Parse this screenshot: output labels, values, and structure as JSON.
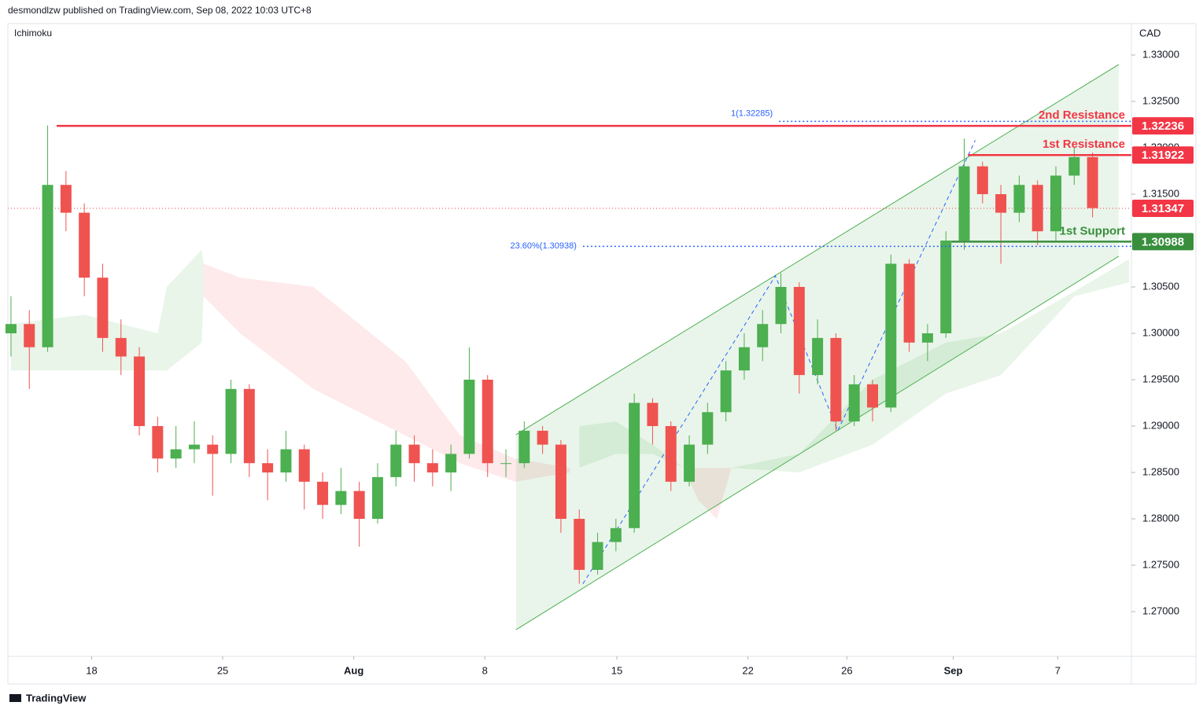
{
  "header": {
    "publisher": "desmondlzw published on TradingView.com, Sep 08, 2022 10:03 UTC+8",
    "indicator": "Ichimoku",
    "footer": "TradingView"
  },
  "chart_data": {
    "type": "candlestick",
    "currency": "CAD",
    "up_color": "#4caf50",
    "down_color": "#ef5350",
    "xlim": [
      -0.17,
      61.12
    ],
    "ylim": [
      1.26517,
      1.33339
    ],
    "xticks": [
      {
        "value": 4.4,
        "label": "18"
      },
      {
        "value": 11.55,
        "label": "25"
      },
      {
        "value": 18.7,
        "label": "Aug"
      },
      {
        "value": 25.85,
        "label": "8"
      },
      {
        "value": 33.05,
        "label": "15"
      },
      {
        "value": 40.2,
        "label": "22"
      },
      {
        "value": 45.6,
        "label": "26"
      },
      {
        "value": 51.4,
        "label": "Sep"
      },
      {
        "value": 57.1,
        "label": "7"
      }
    ],
    "yticks": [
      {
        "value": 1.33,
        "label": "1.33000"
      },
      {
        "value": 1.325,
        "label": "1.32500"
      },
      {
        "value": 1.32,
        "label": "1.32000"
      },
      {
        "value": 1.315,
        "label": "1.31500"
      },
      {
        "value": 1.31,
        "label": "1.31000"
      },
      {
        "value": 1.305,
        "label": "1.30500"
      },
      {
        "value": 1.3,
        "label": "1.30000"
      },
      {
        "value": 1.295,
        "label": "1.29500"
      },
      {
        "value": 1.29,
        "label": "1.29000"
      },
      {
        "value": 1.285,
        "label": "1.28500"
      },
      {
        "value": 1.28,
        "label": "1.28000"
      },
      {
        "value": 1.275,
        "label": "1.27500"
      },
      {
        "value": 1.27,
        "label": "1.27000"
      }
    ],
    "candles": [
      [
        1.3,
        1.304,
        1.2975,
        1.301
      ],
      [
        1.301,
        1.3025,
        1.294,
        1.2985
      ],
      [
        1.2985,
        1.3224,
        1.298,
        1.316
      ],
      [
        1.316,
        1.3175,
        1.311,
        1.313
      ],
      [
        1.313,
        1.314,
        1.304,
        1.306
      ],
      [
        1.306,
        1.3075,
        1.298,
        1.2995
      ],
      [
        1.2995,
        1.3015,
        1.2955,
        1.2975
      ],
      [
        1.2975,
        1.2985,
        1.289,
        1.29
      ],
      [
        1.29,
        1.291,
        1.285,
        1.2865
      ],
      [
        1.2865,
        1.29,
        1.2855,
        1.2875
      ],
      [
        1.2875,
        1.2905,
        1.286,
        1.288
      ],
      [
        1.288,
        1.289,
        1.2825,
        1.287
      ],
      [
        1.287,
        1.295,
        1.286,
        1.294
      ],
      [
        1.294,
        1.2945,
        1.2845,
        1.286
      ],
      [
        1.286,
        1.2875,
        1.282,
        1.285
      ],
      [
        1.285,
        1.2895,
        1.284,
        1.2875
      ],
      [
        1.2875,
        1.288,
        1.281,
        1.284
      ],
      [
        1.284,
        1.285,
        1.28,
        1.2815
      ],
      [
        1.2815,
        1.2855,
        1.2805,
        1.283
      ],
      [
        1.283,
        1.284,
        1.277,
        1.28
      ],
      [
        1.28,
        1.286,
        1.2795,
        1.2845
      ],
      [
        1.2845,
        1.2895,
        1.2835,
        1.288
      ],
      [
        1.288,
        1.289,
        1.284,
        1.286
      ],
      [
        1.286,
        1.2875,
        1.2835,
        1.285
      ],
      [
        1.285,
        1.288,
        1.283,
        1.287
      ],
      [
        1.287,
        1.2985,
        1.2865,
        1.295
      ],
      [
        1.295,
        1.2955,
        1.2845,
        1.286
      ],
      [
        1.286,
        1.2875,
        1.2845,
        1.286
      ],
      [
        1.286,
        1.2905,
        1.2855,
        1.2895
      ],
      [
        1.2895,
        1.29,
        1.287,
        1.288
      ],
      [
        1.288,
        1.2885,
        1.2785,
        1.28
      ],
      [
        1.28,
        1.281,
        1.273,
        1.2745
      ],
      [
        1.2745,
        1.2785,
        1.274,
        1.2775
      ],
      [
        1.2775,
        1.28,
        1.2765,
        1.279
      ],
      [
        1.279,
        1.2935,
        1.2785,
        1.2925
      ],
      [
        1.2925,
        1.293,
        1.288,
        1.29
      ],
      [
        1.29,
        1.2905,
        1.283,
        1.284
      ],
      [
        1.284,
        1.289,
        1.2835,
        1.288
      ],
      [
        1.288,
        1.2925,
        1.287,
        1.2915
      ],
      [
        1.2915,
        1.297,
        1.2905,
        1.296
      ],
      [
        1.296,
        1.3,
        1.295,
        1.2985
      ],
      [
        1.2985,
        1.3025,
        1.297,
        1.301
      ],
      [
        1.301,
        1.3065,
        1.3,
        1.305
      ],
      [
        1.305,
        1.3055,
        1.2935,
        1.2955
      ],
      [
        1.2955,
        1.3015,
        1.2945,
        1.2995
      ],
      [
        1.2995,
        1.3,
        1.2895,
        1.2905
      ],
      [
        1.2905,
        1.2955,
        1.29,
        1.2945
      ],
      [
        1.2945,
        1.295,
        1.2905,
        1.292
      ],
      [
        1.292,
        1.3085,
        1.2915,
        1.3075
      ],
      [
        1.3075,
        1.308,
        1.298,
        1.299
      ],
      [
        1.299,
        1.301,
        1.297,
        1.3
      ],
      [
        1.3,
        1.311,
        1.2995,
        1.31
      ],
      [
        1.31,
        1.321,
        1.309,
        1.318
      ],
      [
        1.318,
        1.3185,
        1.314,
        1.315
      ],
      [
        1.315,
        1.316,
        1.3075,
        1.313
      ],
      [
        1.313,
        1.317,
        1.312,
        1.316
      ],
      [
        1.316,
        1.3165,
        1.3095,
        1.311
      ],
      [
        1.311,
        1.318,
        1.31,
        1.317
      ],
      [
        1.317,
        1.32,
        1.316,
        1.319
      ],
      [
        1.319,
        1.3195,
        1.3125,
        1.3135
      ]
    ],
    "cloud": [
      {
        "color": "rgba(76,175,80,0.13)",
        "x": [
          0,
          4,
          8,
          8.5,
          10.4,
          10.5
        ],
        "upper": [
          1.301,
          1.302,
          1.3,
          1.305,
          1.309,
          1.3075
        ],
        "lower": [
          1.296,
          1.296,
          1.296,
          1.296,
          1.299,
          1.304
        ]
      },
      {
        "color": "rgba(242,54,69,0.11)",
        "x": [
          10.5,
          12.5,
          16.5,
          21.5,
          24.5,
          27.5,
          30.5
        ],
        "upper": [
          1.3075,
          1.306,
          1.305,
          1.297,
          1.289,
          1.2865,
          1.2855
        ],
        "lower": [
          1.304,
          1.3,
          1.294,
          1.289,
          1.286,
          1.284,
          1.285
        ]
      },
      {
        "color": "rgba(76,175,80,0.13)",
        "x": [
          31,
          33,
          35,
          36.7
        ],
        "upper": [
          1.29,
          1.2905,
          1.288,
          1.2855
        ],
        "lower": [
          1.2855,
          1.287,
          1.287,
          1.2855
        ]
      },
      {
        "color": "rgba(242,54,69,0.11)",
        "x": [
          36.7,
          37.5,
          38.5,
          39.3
        ],
        "upper": [
          1.2855,
          1.2855,
          1.2855,
          1.2855
        ],
        "lower": [
          1.2855,
          1.282,
          1.28,
          1.2855
        ]
      },
      {
        "color": "rgba(76,175,80,0.13)",
        "x": [
          39.3,
          43,
          47,
          51,
          54,
          58,
          61
        ],
        "upper": [
          1.2855,
          1.287,
          1.295,
          1.299,
          1.3,
          1.3045,
          1.308
        ],
        "lower": [
          1.2855,
          1.285,
          1.288,
          1.2935,
          1.2955,
          1.304,
          1.3055
        ]
      }
    ],
    "channel": {
      "color": "#4caf50",
      "x": [
        27.55,
        60.43
      ],
      "upper": [
        1.28907,
        1.32898
      ],
      "lower": [
        1.26805,
        1.30831
      ]
    },
    "zigzag": {
      "color": "#2962ff",
      "x": [
        31.2,
        41.7,
        45.1,
        52.6
      ],
      "values": [
        1.273,
        1.3062,
        1.2895,
        1.3208
      ]
    },
    "fib": [
      {
        "label": "1(1.32285)",
        "value": 1.32285,
        "x0": 41.9
      },
      {
        "label": "23.60%(1.30938)",
        "value": 1.30938,
        "x0": 31.2
      }
    ],
    "levels": [
      {
        "name": "2nd Resistance",
        "value": 1.32236,
        "color": "#f23645",
        "x0": 2.49
      },
      {
        "name": "1st Resistance",
        "value": 1.31922,
        "color": "#f23645",
        "x0": 52.2
      },
      {
        "name": "1st Support",
        "value": 1.30988,
        "color": "#388e3c",
        "x0": 51.3
      }
    ],
    "last_price": 1.31347,
    "last_color": "#f23645"
  }
}
